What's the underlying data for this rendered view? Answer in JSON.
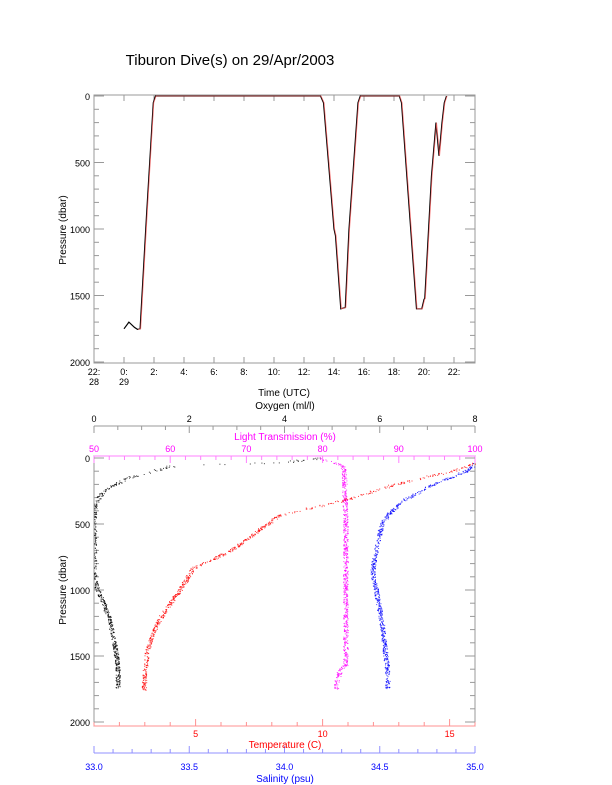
{
  "chart_data": [
    {
      "type": "line",
      "title": "Tiburon Dive(s) on 29/Apr/2003",
      "xlabel": "Time (UTC)",
      "ylabel": "Pressure (dbar)",
      "xlim": [
        -2,
        23.4
      ],
      "ylim": [
        2000,
        0
      ],
      "x_ticks": [
        {
          "v": -2,
          "l1": "22:",
          "l2": "28"
        },
        {
          "v": 0,
          "l1": "0:",
          "l2": "29"
        },
        {
          "v": 2,
          "l1": "2:",
          "l2": ""
        },
        {
          "v": 4,
          "l1": "4:",
          "l2": ""
        },
        {
          "v": 6,
          "l1": "6:",
          "l2": ""
        },
        {
          "v": 8,
          "l1": "8:",
          "l2": ""
        },
        {
          "v": 10,
          "l1": "10:",
          "l2": ""
        },
        {
          "v": 12,
          "l1": "12:",
          "l2": ""
        },
        {
          "v": 14,
          "l1": "14:",
          "l2": ""
        },
        {
          "v": 16,
          "l1": "16:",
          "l2": ""
        },
        {
          "v": 18,
          "l1": "18:",
          "l2": ""
        },
        {
          "v": 20,
          "l1": "20:",
          "l2": ""
        },
        {
          "v": 22,
          "l1": "22:",
          "l2": ""
        }
      ],
      "y_ticks": [
        "0",
        "500",
        "1000",
        "1500",
        "2000"
      ],
      "series": [
        {
          "name": "pressure",
          "color": "#000000",
          "overlay_color": "#ff6060",
          "x": [
            0.0,
            0.33,
            0.7,
            0.9,
            1.07,
            1.5,
            1.95,
            2.1,
            13.1,
            13.3,
            14.0,
            14.1,
            14.45,
            14.75,
            15.0,
            15.6,
            15.75,
            18.35,
            18.5,
            19.5,
            19.85,
            20.0,
            20.05,
            20.5,
            20.8,
            21.0,
            21.2,
            21.35,
            21.5
          ],
          "y": [
            1750,
            1700,
            1740,
            1755,
            1750,
            900,
            50,
            0,
            0,
            50,
            1000,
            1050,
            1600,
            1590,
            1000,
            50,
            0,
            0,
            50,
            1600,
            1600,
            1530,
            1520,
            600,
            200,
            450,
            200,
            50,
            0
          ]
        }
      ]
    },
    {
      "type": "scatter",
      "ylabel": "Pressure (dbar)",
      "ylim": [
        2000,
        0
      ],
      "y_ticks": [
        "0",
        "500",
        "1000",
        "1500",
        "2000"
      ],
      "axes": {
        "oxygen": {
          "label": "Oxygen (ml/l)",
          "position": "top",
          "range": [
            0,
            8
          ],
          "ticks": [
            "0",
            "2",
            "4",
            "6",
            "8"
          ],
          "color": "#000000"
        },
        "light": {
          "label": "Light Transmission (%)",
          "position": "top-inner",
          "range": [
            50,
            100
          ],
          "ticks": [
            "50",
            "60",
            "70",
            "80",
            "90",
            "100"
          ],
          "color": "#ff00ff"
        },
        "temperature": {
          "label": "Temperature (C)",
          "position": "bottom",
          "range": [
            1,
            16
          ],
          "ticks": [
            "5",
            "10",
            "15"
          ],
          "color": "#ff0000"
        },
        "salinity": {
          "label": "Salinity (psu)",
          "position": "bottom-outer",
          "range": [
            33,
            35
          ],
          "ticks": [
            "33.0",
            "33.5",
            "34.0",
            "34.5",
            "35.0"
          ],
          "color": "#0000ff"
        }
      },
      "series": [
        {
          "name": "Oxygen",
          "axis": "oxygen",
          "color": "#000000",
          "p": [
            0,
            30,
            60,
            100,
            150,
            200,
            250,
            320,
            400,
            900,
            1000,
            1100,
            1200,
            1350,
            1500,
            1600,
            1750
          ],
          "v": [
            4.7,
            4.0,
            1.6,
            1.2,
            0.7,
            0.45,
            0.2,
            0.05,
            0.0,
            0.0,
            0.07,
            0.2,
            0.3,
            0.4,
            0.47,
            0.5,
            0.5
          ]
        },
        {
          "name": "Light Transmission",
          "axis": "light",
          "color": "#ff00ff",
          "p": [
            0,
            20,
            50,
            100,
            500,
            1000,
            1500,
            1560,
            1600,
            1700,
            1750
          ],
          "v": [
            79.5,
            80.5,
            82.5,
            82.8,
            83.0,
            83.0,
            83.0,
            83.0,
            82.3,
            81.8,
            81.8
          ]
        },
        {
          "name": "Temperature",
          "axis": "temperature",
          "color": "#ff0000",
          "p": [
            40,
            100,
            200,
            320,
            430,
            530,
            710,
            830,
            960,
            1100,
            1240,
            1440,
            1600,
            1750
          ],
          "v": [
            16.0,
            15.0,
            12.8,
            10.8,
            8.3,
            7.6,
            6.3,
            4.9,
            4.5,
            4.0,
            3.5,
            3.1,
            3.0,
            2.95
          ]
        },
        {
          "name": "Salinity",
          "axis": "salinity",
          "color": "#0000ff",
          "p": [
            40,
            100,
            200,
            320,
            430,
            500,
            700,
            850,
            1000,
            1250,
            1500,
            1600,
            1750
          ],
          "v": [
            35.0,
            34.95,
            34.78,
            34.62,
            34.54,
            34.51,
            34.48,
            34.46,
            34.48,
            34.51,
            34.53,
            34.54,
            34.54
          ]
        }
      ]
    }
  ]
}
